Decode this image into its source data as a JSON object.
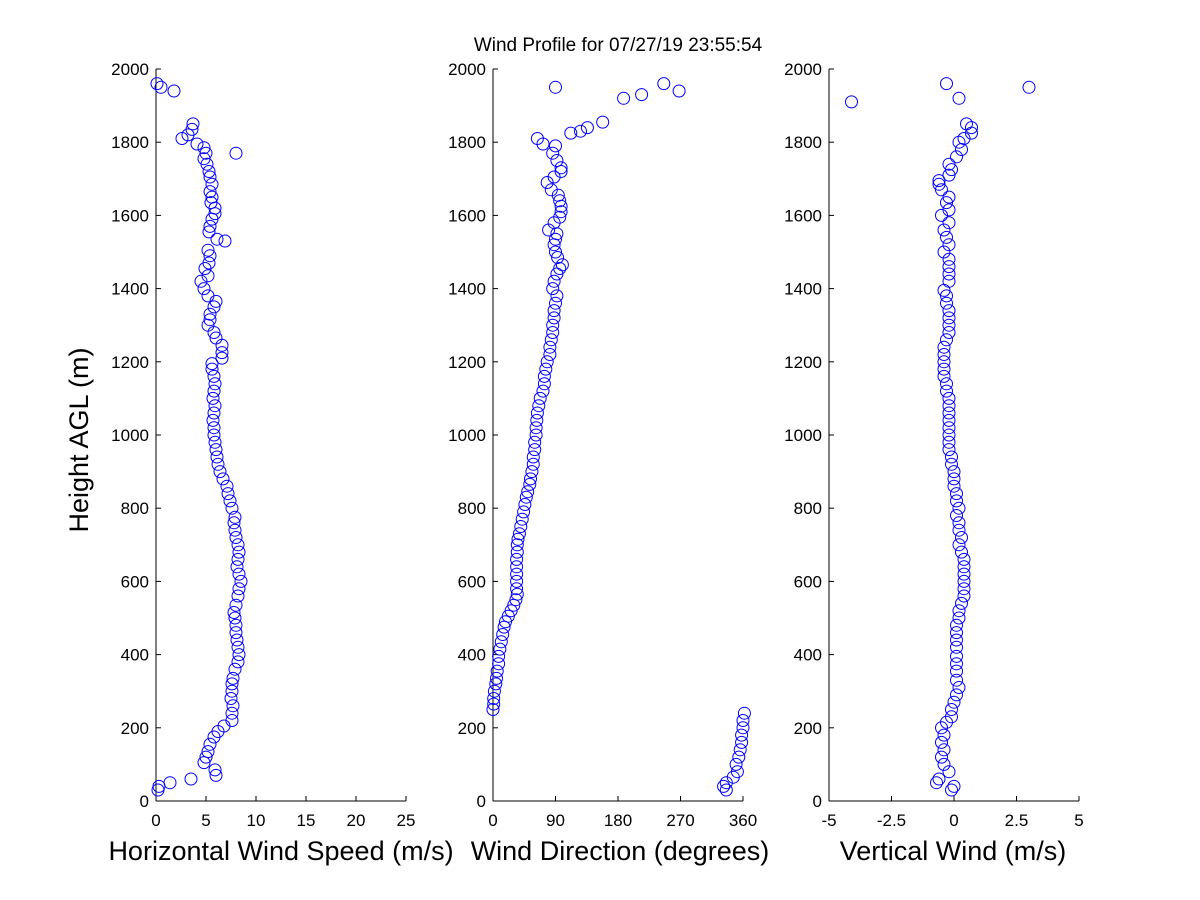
{
  "title": "Wind Profile for  07/27/19 23:55:54",
  "colors": {
    "marker": "#0000ff",
    "axis": "#000000",
    "background": "#ffffff"
  },
  "chart_data": [
    {
      "type": "scatter",
      "xlabel": "Horizontal Wind Speed (m/s)",
      "ylabel": "Height AGL (m)",
      "xlim": [
        0,
        25
      ],
      "ylim": [
        0,
        2000
      ],
      "xticks": [
        0,
        5,
        10,
        15,
        20,
        25
      ],
      "xtick_labels": [
        "0",
        "5",
        "10",
        "15",
        "20",
        "25"
      ],
      "yticks": [
        0,
        200,
        400,
        600,
        800,
        1000,
        1200,
        1400,
        1600,
        1800,
        2000
      ],
      "ytick_labels": [
        "0",
        "200",
        "400",
        "600",
        "800",
        "1000",
        "1200",
        "1400",
        "1600",
        "1800",
        "2000"
      ],
      "points": [
        [
          0.2,
          30
        ],
        [
          0.3,
          40
        ],
        [
          1.4,
          50
        ],
        [
          3.5,
          60
        ],
        [
          6.0,
          70
        ],
        [
          5.9,
          85
        ],
        [
          4.8,
          105
        ],
        [
          5.0,
          120
        ],
        [
          5.2,
          135
        ],
        [
          5.4,
          155
        ],
        [
          5.8,
          175
        ],
        [
          6.2,
          190
        ],
        [
          6.8,
          205
        ],
        [
          7.6,
          220
        ],
        [
          7.6,
          240
        ],
        [
          7.7,
          260
        ],
        [
          7.5,
          280
        ],
        [
          7.6,
          300
        ],
        [
          7.6,
          320
        ],
        [
          7.7,
          335
        ],
        [
          7.9,
          360
        ],
        [
          8.2,
          380
        ],
        [
          8.3,
          400
        ],
        [
          8.2,
          420
        ],
        [
          8.1,
          440
        ],
        [
          8.0,
          460
        ],
        [
          8.0,
          480
        ],
        [
          7.9,
          500
        ],
        [
          7.8,
          515
        ],
        [
          8.0,
          535
        ],
        [
          8.2,
          560
        ],
        [
          8.3,
          580
        ],
        [
          8.5,
          600
        ],
        [
          8.3,
          620
        ],
        [
          8.1,
          640
        ],
        [
          8.2,
          660
        ],
        [
          8.3,
          680
        ],
        [
          8.2,
          700
        ],
        [
          8.0,
          720
        ],
        [
          7.9,
          740
        ],
        [
          7.8,
          760
        ],
        [
          7.9,
          775
        ],
        [
          7.6,
          800
        ],
        [
          7.4,
          820
        ],
        [
          7.2,
          840
        ],
        [
          7.1,
          860
        ],
        [
          6.7,
          880
        ],
        [
          6.4,
          900
        ],
        [
          6.2,
          920
        ],
        [
          6.1,
          940
        ],
        [
          6.0,
          960
        ],
        [
          5.9,
          980
        ],
        [
          5.8,
          1000
        ],
        [
          5.8,
          1020
        ],
        [
          5.7,
          1040
        ],
        [
          5.8,
          1060
        ],
        [
          5.9,
          1080
        ],
        [
          5.7,
          1100
        ],
        [
          5.8,
          1120
        ],
        [
          5.9,
          1140
        ],
        [
          5.8,
          1160
        ],
        [
          5.6,
          1180
        ],
        [
          5.6,
          1195
        ],
        [
          6.6,
          1210
        ],
        [
          6.6,
          1225
        ],
        [
          6.6,
          1245
        ],
        [
          6.0,
          1265
        ],
        [
          5.8,
          1280
        ],
        [
          5.2,
          1300
        ],
        [
          5.4,
          1315
        ],
        [
          5.4,
          1330
        ],
        [
          5.8,
          1350
        ],
        [
          6.0,
          1365
        ],
        [
          5.2,
          1380
        ],
        [
          4.8,
          1400
        ],
        [
          4.5,
          1420
        ],
        [
          5.2,
          1435
        ],
        [
          4.9,
          1455
        ],
        [
          5.3,
          1470
        ],
        [
          5.4,
          1490
        ],
        [
          5.2,
          1505
        ],
        [
          6.9,
          1530
        ],
        [
          6.1,
          1535
        ],
        [
          5.3,
          1555
        ],
        [
          5.4,
          1570
        ],
        [
          5.6,
          1590
        ],
        [
          5.9,
          1605
        ],
        [
          5.9,
          1620
        ],
        [
          5.5,
          1635
        ],
        [
          5.6,
          1650
        ],
        [
          5.4,
          1665
        ],
        [
          5.6,
          1685
        ],
        [
          5.4,
          1705
        ],
        [
          5.3,
          1720
        ],
        [
          5.1,
          1740
        ],
        [
          4.8,
          1755
        ],
        [
          5.0,
          1770
        ],
        [
          4.8,
          1785
        ],
        [
          8.0,
          1770
        ],
        [
          4.1,
          1795
        ],
        [
          2.6,
          1810
        ],
        [
          3.2,
          1820
        ],
        [
          3.6,
          1835
        ],
        [
          3.7,
          1850
        ],
        [
          0.1,
          1960
        ],
        [
          0.5,
          1950
        ],
        [
          1.8,
          1940
        ]
      ]
    },
    {
      "type": "scatter",
      "xlabel": "Wind Direction (degrees)",
      "ylabel": "",
      "xlim": [
        0,
        360
      ],
      "ylim": [
        0,
        2000
      ],
      "xticks": [
        0,
        90,
        180,
        270,
        360
      ],
      "xtick_labels": [
        "0",
        "90",
        "180",
        "270",
        "360"
      ],
      "yticks": [
        0,
        200,
        400,
        600,
        800,
        1000,
        1200,
        1400,
        1600,
        1800,
        2000
      ],
      "ytick_labels": [
        "0",
        "200",
        "400",
        "600",
        "800",
        "1000",
        "1200",
        "1400",
        "1600",
        "1800",
        "2000"
      ],
      "points": [
        [
          0,
          250
        ],
        [
          1,
          265
        ],
        [
          1,
          280
        ],
        [
          2,
          300
        ],
        [
          4,
          320
        ],
        [
          5,
          335
        ],
        [
          6,
          355
        ],
        [
          8,
          375
        ],
        [
          8,
          395
        ],
        [
          10,
          415
        ],
        [
          12,
          435
        ],
        [
          14,
          455
        ],
        [
          16,
          475
        ],
        [
          18,
          490
        ],
        [
          22,
          505
        ],
        [
          26,
          520
        ],
        [
          30,
          535
        ],
        [
          33,
          550
        ],
        [
          35,
          565
        ],
        [
          34,
          580
        ],
        [
          34,
          600
        ],
        [
          34,
          620
        ],
        [
          34,
          640
        ],
        [
          34,
          660
        ],
        [
          35,
          680
        ],
        [
          35,
          700
        ],
        [
          36,
          715
        ],
        [
          38,
          730
        ],
        [
          40,
          750
        ],
        [
          42,
          770
        ],
        [
          44,
          790
        ],
        [
          46,
          810
        ],
        [
          48,
          830
        ],
        [
          50,
          845
        ],
        [
          53,
          865
        ],
        [
          54,
          880
        ],
        [
          56,
          900
        ],
        [
          58,
          920
        ],
        [
          58,
          940
        ],
        [
          60,
          960
        ],
        [
          60,
          980
        ],
        [
          62,
          1000
        ],
        [
          62,
          1020
        ],
        [
          63,
          1040
        ],
        [
          64,
          1060
        ],
        [
          66,
          1080
        ],
        [
          68,
          1100
        ],
        [
          72,
          1120
        ],
        [
          74,
          1140
        ],
        [
          74,
          1160
        ],
        [
          76,
          1180
        ],
        [
          78,
          1200
        ],
        [
          82,
          1220
        ],
        [
          82,
          1240
        ],
        [
          84,
          1260
        ],
        [
          86,
          1280
        ],
        [
          86,
          1300
        ],
        [
          88,
          1320
        ],
        [
          88,
          1340
        ],
        [
          90,
          1360
        ],
        [
          92,
          1380
        ],
        [
          86,
          1400
        ],
        [
          88,
          1420
        ],
        [
          92,
          1440
        ],
        [
          96,
          1455
        ],
        [
          100,
          1465
        ],
        [
          93,
          1485
        ],
        [
          90,
          1500
        ],
        [
          88,
          1520
        ],
        [
          90,
          1535
        ],
        [
          92,
          1550
        ],
        [
          80,
          1560
        ],
        [
          88,
          1580
        ],
        [
          96,
          1595
        ],
        [
          98,
          1610
        ],
        [
          98,
          1625
        ],
        [
          96,
          1640
        ],
        [
          94,
          1655
        ],
        [
          84,
          1670
        ],
        [
          78,
          1690
        ],
        [
          88,
          1705
        ],
        [
          98,
          1720
        ],
        [
          98,
          1730
        ],
        [
          92,
          1750
        ],
        [
          86,
          1770
        ],
        [
          90,
          1790
        ],
        [
          72,
          1795
        ],
        [
          64,
          1810
        ],
        [
          112,
          1825
        ],
        [
          126,
          1830
        ],
        [
          136,
          1840
        ],
        [
          158,
          1855
        ],
        [
          188,
          1920
        ],
        [
          214,
          1930
        ],
        [
          246,
          1960
        ],
        [
          268,
          1940
        ],
        [
          90,
          1950
        ],
        [
          336,
          30
        ],
        [
          332,
          40
        ],
        [
          336,
          50
        ],
        [
          346,
          65
        ],
        [
          352,
          80
        ],
        [
          350,
          100
        ],
        [
          354,
          120
        ],
        [
          356,
          140
        ],
        [
          358,
          160
        ],
        [
          358,
          180
        ],
        [
          360,
          200
        ],
        [
          360,
          220
        ],
        [
          362,
          240
        ]
      ]
    },
    {
      "type": "scatter",
      "xlabel": "Vertical Wind (m/s)",
      "ylabel": "",
      "xlim": [
        -5,
        5
      ],
      "ylim": [
        0,
        2000
      ],
      "xticks": [
        -5,
        -2.5,
        0,
        2.5,
        5
      ],
      "xtick_labels": [
        "-5",
        "-2.5",
        "0",
        "2.5",
        "5"
      ],
      "yticks": [
        0,
        200,
        400,
        600,
        800,
        1000,
        1200,
        1400,
        1600,
        1800,
        2000
      ],
      "ytick_labels": [
        "0",
        "200",
        "400",
        "600",
        "800",
        "1000",
        "1200",
        "1400",
        "1600",
        "1800",
        "2000"
      ],
      "points": [
        [
          -0.1,
          30
        ],
        [
          0.0,
          40
        ],
        [
          -0.7,
          50
        ],
        [
          -0.6,
          60
        ],
        [
          -0.2,
          80
        ],
        [
          -0.4,
          100
        ],
        [
          -0.5,
          120
        ],
        [
          -0.4,
          140
        ],
        [
          -0.5,
          160
        ],
        [
          -0.4,
          180
        ],
        [
          -0.5,
          200
        ],
        [
          -0.3,
          215
        ],
        [
          -0.1,
          230
        ],
        [
          -0.1,
          250
        ],
        [
          0.0,
          270
        ],
        [
          0.1,
          290
        ],
        [
          0.2,
          310
        ],
        [
          0.1,
          330
        ],
        [
          0.1,
          355
        ],
        [
          0.1,
          375
        ],
        [
          0.1,
          395
        ],
        [
          0.1,
          420
        ],
        [
          0.1,
          440
        ],
        [
          0.1,
          460
        ],
        [
          0.1,
          480
        ],
        [
          0.2,
          500
        ],
        [
          0.2,
          520
        ],
        [
          0.3,
          540
        ],
        [
          0.4,
          560
        ],
        [
          0.4,
          580
        ],
        [
          0.4,
          600
        ],
        [
          0.4,
          620
        ],
        [
          0.4,
          640
        ],
        [
          0.4,
          660
        ],
        [
          0.3,
          680
        ],
        [
          0.2,
          700
        ],
        [
          0.3,
          720
        ],
        [
          0.2,
          740
        ],
        [
          0.2,
          760
        ],
        [
          0.1,
          780
        ],
        [
          0.2,
          800
        ],
        [
          0.1,
          820
        ],
        [
          0.1,
          840
        ],
        [
          0.0,
          860
        ],
        [
          0.0,
          880
        ],
        [
          0.0,
          900
        ],
        [
          -0.1,
          920
        ],
        [
          -0.1,
          940
        ],
        [
          -0.2,
          960
        ],
        [
          -0.2,
          980
        ],
        [
          -0.2,
          1000
        ],
        [
          -0.2,
          1020
        ],
        [
          -0.2,
          1040
        ],
        [
          -0.2,
          1060
        ],
        [
          -0.2,
          1080
        ],
        [
          -0.2,
          1100
        ],
        [
          -0.3,
          1120
        ],
        [
          -0.3,
          1140
        ],
        [
          -0.4,
          1160
        ],
        [
          -0.4,
          1180
        ],
        [
          -0.4,
          1200
        ],
        [
          -0.4,
          1220
        ],
        [
          -0.4,
          1240
        ],
        [
          -0.3,
          1260
        ],
        [
          -0.2,
          1280
        ],
        [
          -0.2,
          1300
        ],
        [
          -0.2,
          1320
        ],
        [
          -0.2,
          1340
        ],
        [
          -0.3,
          1360
        ],
        [
          -0.3,
          1380
        ],
        [
          -0.4,
          1395
        ],
        [
          -0.2,
          1420
        ],
        [
          -0.2,
          1440
        ],
        [
          -0.2,
          1460
        ],
        [
          -0.2,
          1480
        ],
        [
          -0.4,
          1500
        ],
        [
          -0.2,
          1520
        ],
        [
          -0.3,
          1540
        ],
        [
          -0.4,
          1560
        ],
        [
          -0.2,
          1580
        ],
        [
          -0.5,
          1600
        ],
        [
          -0.2,
          1615
        ],
        [
          -0.3,
          1635
        ],
        [
          -0.2,
          1650
        ],
        [
          -0.5,
          1670
        ],
        [
          -0.6,
          1685
        ],
        [
          -0.6,
          1695
        ],
        [
          -0.2,
          1710
        ],
        [
          -0.1,
          1725
        ],
        [
          -0.2,
          1740
        ],
        [
          0.1,
          1760
        ],
        [
          0.3,
          1780
        ],
        [
          0.2,
          1800
        ],
        [
          0.4,
          1810
        ],
        [
          0.7,
          1825
        ],
        [
          0.7,
          1840
        ],
        [
          0.5,
          1850
        ],
        [
          -4.1,
          1910
        ],
        [
          0.2,
          1920
        ],
        [
          3.0,
          1950
        ],
        [
          -0.3,
          1960
        ]
      ]
    }
  ]
}
